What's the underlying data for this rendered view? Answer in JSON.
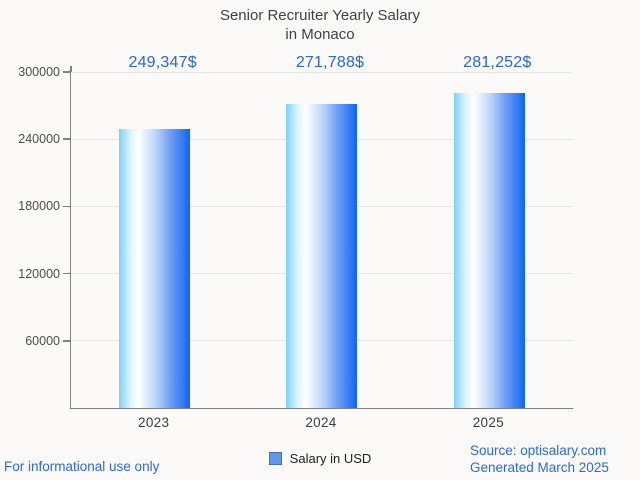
{
  "title": {
    "line1": "Senior Recruiter Yearly Salary",
    "line2": "in Monaco"
  },
  "chart_data": {
    "type": "bar",
    "title": "Senior Recruiter Yearly Salary in Monaco",
    "categories": [
      "2023",
      "2024",
      "2025"
    ],
    "series": [
      {
        "name": "Salary in USD",
        "values": [
          249347,
          271788,
          281252
        ]
      }
    ],
    "value_labels": [
      "249,347$",
      "271,788$",
      "281,252$"
    ],
    "xlabel": "",
    "ylabel": "",
    "ylim": [
      0,
      300000
    ],
    "yticks": [
      60000,
      120000,
      180000,
      240000,
      300000
    ],
    "ytick_labels": [
      "60000",
      "120000",
      "180000",
      "240000",
      "300000"
    ],
    "grid": true,
    "legend_position": "bottom-center"
  },
  "legend": {
    "label": "Salary in USD"
  },
  "footer": {
    "left_note": "For informational use only",
    "source_line1": "Source: optisalary.com",
    "source_line2": "Generated March 2025"
  },
  "colors": {
    "accent_blue": "#2a67da",
    "footer_blue": "#2b6be0",
    "bar_gradient": [
      "#7dd2f9",
      "#def2fd",
      "#ffffff",
      "#b9d3fa",
      "#6d9df4",
      "#0f66f2"
    ],
    "legend_swatch": "#6397e3",
    "legend_swatch_border": "#3f74c2",
    "axis": "#838383",
    "grid": "#e8e6e3",
    "background": "#fbfaf8"
  }
}
